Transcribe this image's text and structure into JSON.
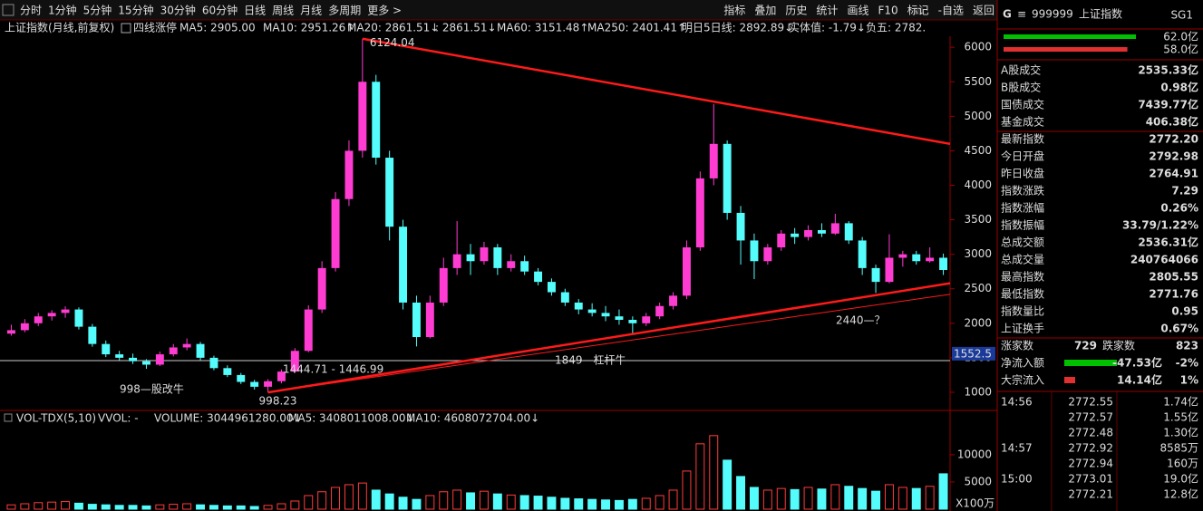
{
  "toolbar": {
    "periods": [
      "分时",
      "1分钟",
      "5分钟",
      "15分钟",
      "30分钟",
      "60分钟",
      "日线",
      "周线",
      "月线",
      "多周期",
      "更多 >"
    ],
    "active": "月线",
    "tools": [
      "指标",
      "叠加",
      "历史",
      "统计",
      "画线",
      "F10",
      "标记",
      "-自选",
      "返回"
    ]
  },
  "main_chart": {
    "type": "candlestick",
    "title": "上证指数(月线,前复权)",
    "indicator": "四线涨停",
    "ma_labels": [
      {
        "text": "MA5: 2905.00",
        "color": "#ffffff"
      },
      {
        "text": "MA10: 2951.26↑",
        "color": "#ffff00"
      },
      {
        "text": "MA20: 2861.51↓",
        "color": "#ff44ff"
      },
      {
        "text": ": 2861.51↓",
        "color": "#ffffff"
      },
      {
        "text": "MA60: 3151.48↑",
        "color": "#00ff00"
      },
      {
        "text": "MA250: 2401.41↑",
        "color": "#ff4040"
      },
      {
        "text": "明日5日线: 2892.89↓",
        "color": "#ffffff"
      },
      {
        "text": "实体值: -1.79↓",
        "color": "#ffff00"
      },
      {
        "text": "负五: 2782.",
        "color": "#00ff00"
      }
    ],
    "ylim": [
      750,
      6160
    ],
    "yticks": [
      1000,
      1500,
      2000,
      2500,
      3000,
      3500,
      4000,
      4500,
      5000,
      5500,
      6000
    ],
    "up_color": "#ff3cd2",
    "down_color": "#54fcfc",
    "candles": [
      {
        "o": 1850,
        "h": 1980,
        "l": 1820,
        "c": 1900
      },
      {
        "o": 1900,
        "h": 2060,
        "l": 1870,
        "c": 2000
      },
      {
        "o": 2000,
        "h": 2150,
        "l": 1960,
        "c": 2100
      },
      {
        "o": 2100,
        "h": 2190,
        "l": 2040,
        "c": 2150
      },
      {
        "o": 2150,
        "h": 2245,
        "l": 2080,
        "c": 2200
      },
      {
        "o": 2200,
        "h": 2230,
        "l": 1910,
        "c": 1950
      },
      {
        "o": 1950,
        "h": 1990,
        "l": 1660,
        "c": 1700
      },
      {
        "o": 1700,
        "h": 1750,
        "l": 1510,
        "c": 1550
      },
      {
        "o": 1550,
        "h": 1600,
        "l": 1460,
        "c": 1500
      },
      {
        "o": 1500,
        "h": 1560,
        "l": 1410,
        "c": 1450
      },
      {
        "o": 1450,
        "h": 1480,
        "l": 1340,
        "c": 1400
      },
      {
        "o": 1400,
        "h": 1590,
        "l": 1380,
        "c": 1550
      },
      {
        "o": 1550,
        "h": 1700,
        "l": 1520,
        "c": 1650
      },
      {
        "o": 1650,
        "h": 1780,
        "l": 1610,
        "c": 1700
      },
      {
        "o": 1700,
        "h": 1730,
        "l": 1460,
        "c": 1500
      },
      {
        "o": 1500,
        "h": 1530,
        "l": 1320,
        "c": 1350
      },
      {
        "o": 1350,
        "h": 1390,
        "l": 1220,
        "c": 1250
      },
      {
        "o": 1250,
        "h": 1280,
        "l": 1120,
        "c": 1150
      },
      {
        "o": 1150,
        "h": 1180,
        "l": 1040,
        "c": 1080
      },
      {
        "o": 1080,
        "h": 1190,
        "l": 998.23,
        "c": 1160
      },
      {
        "o": 1160,
        "h": 1330,
        "l": 1130,
        "c": 1300
      },
      {
        "o": 1300,
        "h": 1640,
        "l": 1280,
        "c": 1600
      },
      {
        "o": 1600,
        "h": 2260,
        "l": 1580,
        "c": 2200
      },
      {
        "o": 2200,
        "h": 2900,
        "l": 2150,
        "c": 2800
      },
      {
        "o": 2800,
        "h": 3900,
        "l": 2750,
        "c": 3800
      },
      {
        "o": 3800,
        "h": 4650,
        "l": 3700,
        "c": 4500
      },
      {
        "o": 4500,
        "h": 6124.04,
        "l": 4400,
        "c": 5500
      },
      {
        "o": 5500,
        "h": 5600,
        "l": 4300,
        "c": 4400
      },
      {
        "o": 4400,
        "h": 4500,
        "l": 3200,
        "c": 3400
      },
      {
        "o": 3400,
        "h": 3500,
        "l": 2200,
        "c": 2300
      },
      {
        "o": 2300,
        "h": 2400,
        "l": 1664,
        "c": 1800
      },
      {
        "o": 1800,
        "h": 2400,
        "l": 1780,
        "c": 2300
      },
      {
        "o": 2300,
        "h": 2950,
        "l": 2250,
        "c": 2800
      },
      {
        "o": 2800,
        "h": 3480,
        "l": 2700,
        "c": 3000
      },
      {
        "o": 3000,
        "h": 3150,
        "l": 2700,
        "c": 2900
      },
      {
        "o": 2900,
        "h": 3180,
        "l": 2850,
        "c": 3100
      },
      {
        "o": 3100,
        "h": 3150,
        "l": 2700,
        "c": 2800
      },
      {
        "o": 2800,
        "h": 3000,
        "l": 2750,
        "c": 2900
      },
      {
        "o": 2900,
        "h": 2980,
        "l": 2700,
        "c": 2750
      },
      {
        "o": 2750,
        "h": 2800,
        "l": 2550,
        "c": 2600
      },
      {
        "o": 2600,
        "h": 2650,
        "l": 2400,
        "c": 2450
      },
      {
        "o": 2450,
        "h": 2500,
        "l": 2250,
        "c": 2300
      },
      {
        "o": 2300,
        "h": 2350,
        "l": 2130,
        "c": 2200
      },
      {
        "o": 2200,
        "h": 2290,
        "l": 2100,
        "c": 2150
      },
      {
        "o": 2150,
        "h": 2250,
        "l": 2030,
        "c": 2100
      },
      {
        "o": 2100,
        "h": 2200,
        "l": 1980,
        "c": 2050
      },
      {
        "o": 2050,
        "h": 2100,
        "l": 1849,
        "c": 2000
      },
      {
        "o": 2000,
        "h": 2150,
        "l": 1960,
        "c": 2100
      },
      {
        "o": 2100,
        "h": 2300,
        "l": 2060,
        "c": 2250
      },
      {
        "o": 2250,
        "h": 2450,
        "l": 2200,
        "c": 2400
      },
      {
        "o": 2400,
        "h": 3200,
        "l": 2350,
        "c": 3100
      },
      {
        "o": 3100,
        "h": 4200,
        "l": 3050,
        "c": 4100
      },
      {
        "o": 4100,
        "h": 5178,
        "l": 4000,
        "c": 4600
      },
      {
        "o": 4600,
        "h": 4650,
        "l": 3500,
        "c": 3600
      },
      {
        "o": 3600,
        "h": 3700,
        "l": 2850,
        "c": 3200
      },
      {
        "o": 3200,
        "h": 3300,
        "l": 2640,
        "c": 2900
      },
      {
        "o": 2900,
        "h": 3150,
        "l": 2850,
        "c": 3100
      },
      {
        "o": 3100,
        "h": 3350,
        "l": 3050,
        "c": 3300
      },
      {
        "o": 3300,
        "h": 3380,
        "l": 3150,
        "c": 3250
      },
      {
        "o": 3250,
        "h": 3420,
        "l": 3200,
        "c": 3350
      },
      {
        "o": 3350,
        "h": 3450,
        "l": 3250,
        "c": 3300
      },
      {
        "o": 3300,
        "h": 3587,
        "l": 3280,
        "c": 3450
      },
      {
        "o": 3450,
        "h": 3480,
        "l": 3150,
        "c": 3200
      },
      {
        "o": 3200,
        "h": 3250,
        "l": 2700,
        "c": 2800
      },
      {
        "o": 2800,
        "h": 2850,
        "l": 2440,
        "c": 2600
      },
      {
        "o": 2600,
        "h": 3290,
        "l": 2580,
        "c": 2950
      },
      {
        "o": 2950,
        "h": 3050,
        "l": 2820,
        "c": 3000
      },
      {
        "o": 3000,
        "h": 3050,
        "l": 2850,
        "c": 2900
      },
      {
        "o": 2900,
        "h": 3100,
        "l": 2880,
        "c": 2950
      },
      {
        "o": 2950,
        "h": 3010,
        "l": 2700,
        "c": 2772.2
      }
    ],
    "trendlines": [
      {
        "start": [
          26,
          6124.04
        ],
        "end": [
          70,
          4600
        ],
        "color": "#ff1a1a"
      },
      {
        "start": [
          19,
          998.23
        ],
        "end": [
          70,
          2580
        ],
        "color": "#ff1a1a"
      },
      {
        "start": [
          19,
          998.23
        ],
        "end": [
          70,
          2420
        ],
        "color": "#ff1a1a"
      }
    ],
    "annotations": [
      {
        "text": "1444.71 - 1446.99",
        "color": "#cccccc"
      },
      {
        "text": "998—股改牛",
        "color": "#ff1a1a"
      },
      {
        "text": "1849—杠杆牛",
        "color": "#ff1a1a"
      },
      {
        "text": "2440—？",
        "color": "#ff1a1a"
      }
    ],
    "price_cursor": 1552.5
  },
  "volume_chart": {
    "type": "bar",
    "labels": [
      {
        "text": "VOL-TDX(5,10)",
        "color": "#ffffff"
      },
      {
        "text": "VVOL: -",
        "color": "#ffffff"
      },
      {
        "text": "VOLUME: 3044961280.00↓",
        "color": "#ffff00"
      },
      {
        "text": "MA5: 3408011008.00↓",
        "color": "#ffffff"
      },
      {
        "text": "MA10: 4608072704.00↓",
        "color": "#ff44ff"
      }
    ],
    "unit": "X100万",
    "ylim": [
      0,
      15300
    ],
    "yticks": [
      5000,
      10000
    ],
    "values": [
      800,
      1000,
      1200,
      1300,
      1400,
      1100,
      900,
      800,
      700,
      700,
      600,
      800,
      900,
      1000,
      800,
      700,
      600,
      600,
      500,
      700,
      1000,
      1500,
      2500,
      3200,
      4000,
      4500,
      4800,
      3500,
      2800,
      2200,
      1800,
      2500,
      3200,
      3500,
      3000,
      3300,
      2800,
      2600,
      2500,
      2400,
      2200,
      2000,
      1900,
      1800,
      1700,
      1600,
      1800,
      2000,
      2500,
      3500,
      7000,
      12000,
      13500,
      9000,
      6000,
      4000,
      3500,
      3800,
      3600,
      4000,
      3700,
      4500,
      4200,
      3800,
      3300,
      4500,
      4000,
      3800,
      4200,
      6500
    ]
  },
  "side_panel": {
    "header": {
      "g": "G",
      "menu": "≡",
      "code": "999999",
      "name": "上证指数",
      "tag": "SG1"
    },
    "ratio": [
      {
        "text": "62.0亿",
        "value": 62.0,
        "color": "#00c000"
      },
      {
        "text": "58.0亿",
        "value": 58.0,
        "color": "#e03030"
      }
    ],
    "rows": [
      {
        "label": "A股成交",
        "value": "2535.33亿",
        "color": "#ffff00"
      },
      {
        "label": "B股成交",
        "value": "0.98亿",
        "color": "#ffff00"
      },
      {
        "label": "国债成交",
        "value": "7439.77亿",
        "color": "#ffff00"
      },
      {
        "label": "基金成交",
        "value": "406.38亿",
        "color": "#ffff00"
      },
      {
        "label": "最新指数",
        "value": "2772.20",
        "color": "#ff4040"
      },
      {
        "label": "今日开盘",
        "value": "2792.98",
        "color": "#ff4040"
      },
      {
        "label": "昨日收盘",
        "value": "2764.91",
        "color": "#ffffff"
      },
      {
        "label": "指数涨跌",
        "value": "7.29",
        "color": "#ff4040"
      },
      {
        "label": "指数涨幅",
        "value": "0.26%",
        "color": "#ff4040"
      },
      {
        "label": "指数振幅",
        "value": "33.79/1.22%",
        "color": "#ffffff"
      },
      {
        "label": "总成交额",
        "value": "2536.31亿",
        "color": "#ffff00"
      },
      {
        "label": "总成交量",
        "value": "240764066",
        "color": "#ffff00"
      },
      {
        "label": "最高指数",
        "value": "2805.55",
        "color": "#ff4040"
      },
      {
        "label": "最低指数",
        "value": "2771.76",
        "color": "#ff4040"
      },
      {
        "label": "指数量比",
        "value": "0.95",
        "color": "#c8e600"
      },
      {
        "label": "上证换手",
        "value": "0.67%",
        "color": "#ffffff"
      }
    ],
    "breadth": {
      "up_label": "涨家数",
      "up": "729",
      "down_label": "跌家数",
      "down": "823"
    },
    "flows": [
      {
        "label": "净流入额",
        "value": "-47.53亿",
        "pct": "-2%",
        "color": "#00e000",
        "bar": "#00c000"
      },
      {
        "label": "大宗流入",
        "value": "14.14亿",
        "pct": "1%",
        "color": "#ffff00",
        "bar": "#e03030"
      }
    ],
    "ticks": [
      {
        "time": "14:56",
        "price": "2772.55",
        "vol": "1.74亿"
      },
      {
        "time": null,
        "price": "2772.57",
        "vol": "1.55亿"
      },
      {
        "time": null,
        "price": "2772.48",
        "vol": "1.30亿"
      },
      {
        "time": "14:57",
        "price": "2772.92",
        "vol": "8585万"
      },
      {
        "time": null,
        "price": "2772.94",
        "vol": "160万"
      },
      {
        "time": "15:00",
        "price": "2773.01",
        "vol": "19.0亿"
      },
      {
        "time": null,
        "price": "2772.21",
        "vol": "12.8亿"
      }
    ]
  }
}
